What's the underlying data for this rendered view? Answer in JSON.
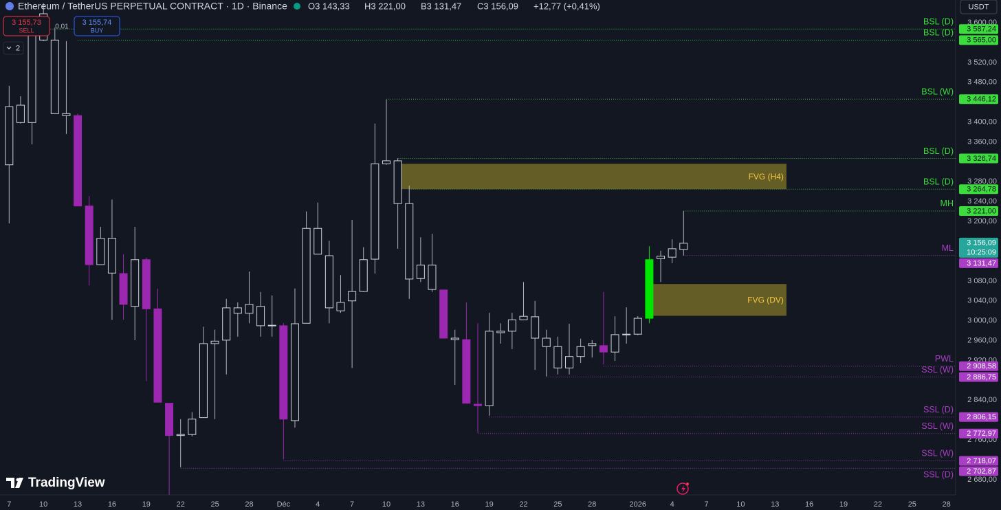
{
  "header": {
    "symbol": "Ethereum / TetherUS PERPETUAL CONTRACT · 1D · Binance",
    "ohlc": [
      "O3 143,33",
      "H3 221,00",
      "B3 131,47",
      "C3 156,09"
    ],
    "change": "+12,77 (+0,41%)"
  },
  "trade": {
    "sell_price": "3 155,73",
    "sell": "SELL",
    "spread": "0,01",
    "buy_price": "3 155,74",
    "buy": "BUY",
    "layouts": "2"
  },
  "currency": "USDT",
  "brand": "TradingView",
  "chart_data": {
    "type": "candlestick",
    "x": [
      0,
      1,
      2,
      3,
      4,
      5,
      6,
      7,
      8,
      9,
      10,
      11,
      12,
      13,
      14,
      15,
      16,
      17,
      18,
      19,
      20,
      21,
      22,
      23,
      24,
      25,
      26,
      27,
      28,
      29,
      30,
      31,
      32,
      33,
      34,
      35,
      36,
      37,
      38,
      39,
      40,
      41,
      42,
      43,
      44,
      45,
      46,
      47,
      48,
      49,
      50,
      51,
      52,
      53,
      54,
      55,
      56,
      57,
      58,
      59
    ],
    "open": [
      3314,
      3399,
      3399,
      3565,
      3417,
      3413,
      3413,
      3231,
      3113,
      3096,
      3095,
      3029,
      3123,
      3024,
      2834,
      2769,
      2771,
      2805,
      2954,
      2961,
      3015,
      3015,
      2990,
      2990,
      2990,
      2799,
      2995,
      3134,
      3026,
      3020,
      3040,
      3059,
      3124,
      3316,
      3236,
      3084,
      3085,
      3063,
      3062,
      2962,
      2962,
      2832,
      2829,
      2976,
      2979,
      3002,
      2965,
      2948,
      2905,
      2905,
      2928,
      2950,
      2950,
      2937,
      2972,
      2973,
      3005,
      3125,
      3128,
      3143.33
    ],
    "high": [
      3473,
      3452,
      3604,
      3639,
      3590,
      3563,
      3417,
      3251,
      3189,
      3244,
      3134,
      3189,
      3127,
      3065,
      2834,
      2802,
      2816,
      2988,
      2982,
      3044,
      3037,
      3099,
      3058,
      3051,
      2995,
      3065,
      3220,
      3238,
      3161,
      3092,
      3203,
      3148,
      3397,
      3445,
      3327,
      3272,
      3168,
      3175,
      3062,
      2982,
      3037,
      2995,
      3016,
      2995,
      3016,
      3078,
      3040,
      2982,
      2968,
      2994,
      2964,
      2961,
      3058,
      3009,
      3027,
      3009,
      3150,
      3141,
      3164,
      3221
    ],
    "low": [
      3196,
      3397,
      3355,
      3563,
      3417,
      3376,
      3231,
      3071,
      3113,
      3002,
      3002,
      2961,
      2878,
      2836,
      2650,
      2705,
      2767,
      2805,
      2802,
      2892,
      2968,
      2995,
      2968,
      2968,
      2721,
      2785,
      2995,
      3134,
      2995,
      3016,
      2905,
      3058,
      3095,
      3314,
      3145,
      3044,
      3078,
      3058,
      2965,
      2871,
      2834,
      2774,
      2809,
      2954,
      2943,
      3002,
      2901,
      2888,
      2892,
      2892,
      2915,
      2926,
      2912,
      2919,
      2954,
      2971,
      2995,
      3078,
      3116,
      3131.47
    ],
    "close": [
      3431,
      3434,
      3583,
      3618,
      3565,
      3417,
      3231,
      3113,
      3166,
      3166,
      3033,
      3123,
      3024,
      2836,
      2769,
      2771,
      2802,
      2954,
      2959,
      3026,
      3026,
      3033,
      3029,
      2991,
      2802,
      2994,
      3186,
      3186,
      3131,
      3037,
      3059,
      3123,
      3316,
      3322,
      3322,
      3236,
      3112,
      3112,
      2965,
      2965,
      2834,
      2829,
      2979,
      2979,
      3002,
      3009,
      3008,
      2965,
      2948,
      2928,
      2948,
      2954,
      2937,
      2972,
      2973,
      3005,
      3123,
      3130,
      3145,
      3156.09
    ],
    "up_color": "#d1d4dc",
    "down_color": "#9c27b0",
    "highlight": {
      "index": 56,
      "color": "#00e600"
    },
    "xlim": [
      -0.8,
      82.8
    ],
    "ylim": [
      2649.5,
      3645.7
    ],
    "xticks": [
      {
        "value": 0,
        "label": "7"
      },
      {
        "value": 3,
        "label": "10"
      },
      {
        "value": 6,
        "label": "13"
      },
      {
        "value": 9,
        "label": "16"
      },
      {
        "value": 12,
        "label": "19"
      },
      {
        "value": 15,
        "label": "22"
      },
      {
        "value": 18,
        "label": "25"
      },
      {
        "value": 21,
        "label": "28"
      },
      {
        "value": 24,
        "label": "Déc"
      },
      {
        "value": 27,
        "label": "4"
      },
      {
        "value": 30,
        "label": "7"
      },
      {
        "value": 33,
        "label": "10"
      },
      {
        "value": 36,
        "label": "13"
      },
      {
        "value": 39,
        "label": "16"
      },
      {
        "value": 42,
        "label": "19"
      },
      {
        "value": 45,
        "label": "22"
      },
      {
        "value": 48,
        "label": "25"
      },
      {
        "value": 51,
        "label": "28"
      },
      {
        "value": 55,
        "label": "2026"
      },
      {
        "value": 58,
        "label": "4"
      },
      {
        "value": 61,
        "label": "7"
      },
      {
        "value": 64,
        "label": "10"
      },
      {
        "value": 67,
        "label": "13"
      },
      {
        "value": 70,
        "label": "16"
      },
      {
        "value": 73,
        "label": "19"
      },
      {
        "value": 76,
        "label": "22"
      },
      {
        "value": 79,
        "label": "25"
      },
      {
        "value": 82,
        "label": "28"
      }
    ],
    "yticks": [
      {
        "value": 3600,
        "label": "3 600,00"
      },
      {
        "value": 3520,
        "label": "3 520,00"
      },
      {
        "value": 3480,
        "label": "3 480,00"
      },
      {
        "value": 3400,
        "label": "3 400,00"
      },
      {
        "value": 3360,
        "label": "3 360,00"
      },
      {
        "value": 3280,
        "label": "3 280,00"
      },
      {
        "value": 3240,
        "label": "3 240,00"
      },
      {
        "value": 3200,
        "label": "3 200,00"
      },
      {
        "value": 3080,
        "label": "3 080,00"
      },
      {
        "value": 3040,
        "label": "3 040,00"
      },
      {
        "value": 3000,
        "label": "3 000,00"
      },
      {
        "value": 2960,
        "label": "2 960,00"
      },
      {
        "value": 2920,
        "label": "2 920,00"
      },
      {
        "value": 2840,
        "label": "2 840,00"
      },
      {
        "value": 2760,
        "label": "2 760,00"
      },
      {
        "value": 2680,
        "label": "2 680,00"
      }
    ],
    "levels": [
      {
        "name": "BSL (D)",
        "value": 3587.24,
        "label": "3 587,24",
        "start": 2,
        "color": "#3ddc3d"
      },
      {
        "name": "BSL (D)",
        "value": 3565.0,
        "label": "3 565,00",
        "start": 6,
        "color": "#3ddc3d"
      },
      {
        "name": "BSL (W)",
        "value": 3446.12,
        "label": "3 446,12",
        "start": 33,
        "color": "#3ddc3d"
      },
      {
        "name": "BSL (D)",
        "value": 3326.74,
        "label": "3 326,74",
        "start": 34,
        "color": "#3ddc3d"
      },
      {
        "name": "BSL (D)",
        "value": 3264.78,
        "label": "3 264,78",
        "start": 35,
        "color": "#3ddc3d"
      },
      {
        "name": "MH",
        "value": 3221.0,
        "label": "3 221,00",
        "start": 59,
        "color": "#3ddc3d"
      },
      {
        "name": "ML",
        "value": 3131.47,
        "label": "3 131,47",
        "start": 59,
        "color": "#a83ec4"
      },
      {
        "name": "PWL",
        "value": 2908.58,
        "label": "2 908,58",
        "start": 52,
        "color": "#a83ec4"
      },
      {
        "name": "SSL (W)",
        "value": 2886.75,
        "label": "2 886,75",
        "start": 47,
        "color": "#a83ec4"
      },
      {
        "name": "SSL (D)",
        "value": 2806.15,
        "label": "2 806,15",
        "start": 42,
        "color": "#a83ec4"
      },
      {
        "name": "SSL (W)",
        "value": 2772.97,
        "label": "2 772,97",
        "start": 41,
        "color": "#a83ec4"
      },
      {
        "name": "SSL (W)",
        "value": 2718.07,
        "label": "2 718,07",
        "start": 24,
        "color": "#a83ec4"
      },
      {
        "name": "SSL (D)",
        "value": 2702.87,
        "label": "2 702,87",
        "start": 15,
        "color": "#a83ec4",
        "label_side": "below"
      }
    ],
    "zones": [
      {
        "name": "FVG (H4)",
        "top": 3316,
        "bottom": 3265,
        "start": 34,
        "end": 68,
        "color": "#6e6527"
      },
      {
        "name": "FVG (DV)",
        "top": 3074,
        "bottom": 3010,
        "start": 56,
        "end": 68,
        "color": "#6e6527"
      }
    ],
    "last": {
      "value": 3156.09,
      "label": "3 156,09",
      "countdown": "10:25:09",
      "color": "#26a69a"
    }
  }
}
